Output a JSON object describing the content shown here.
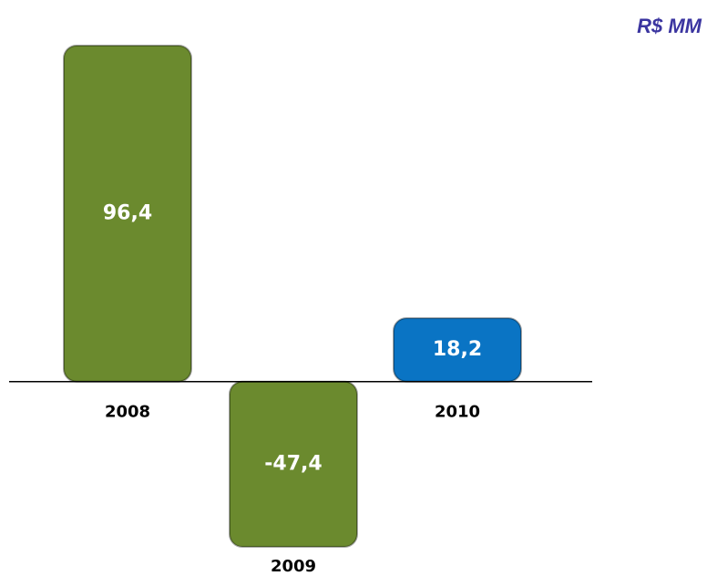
{
  "chart_data": {
    "type": "bar",
    "unit_label": "R$ MM",
    "categories": [
      "2008",
      "2009",
      "2010"
    ],
    "values": [
      96.4,
      -47.4,
      18.2
    ],
    "value_labels": [
      "96,4",
      "-47,4",
      "18,2"
    ],
    "colors": [
      "#6b8a2e",
      "#6b8a2e",
      "#0a74c4"
    ]
  }
}
